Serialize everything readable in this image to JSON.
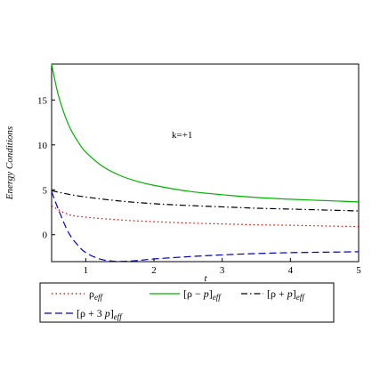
{
  "chart_data": {
    "type": "line",
    "xlabel": "t",
    "ylabel": "Energy Conditions",
    "xlim": [
      0.5,
      5
    ],
    "ylim": [
      -3,
      19
    ],
    "xticks": [
      1,
      2,
      3,
      4,
      5
    ],
    "yticks": [
      0,
      5,
      10,
      15
    ],
    "annotation": "k=+1",
    "legend_placement": "bottom",
    "series": [
      {
        "key": "rho",
        "name": "ρ_eff",
        "color": "#cc0000",
        "dash": "dotted",
        "x": [
          0.5,
          0.75,
          1,
          1.5,
          2,
          2.5,
          3,
          3.5,
          4,
          4.5,
          5
        ],
        "y": [
          3.2,
          2.25,
          1.95,
          1.65,
          1.45,
          1.3,
          1.2,
          1.1,
          1.05,
          0.97,
          0.9
        ]
      },
      {
        "key": "rho_minus_p",
        "name": "[ρ − p]_eff",
        "color": "#00b400",
        "dash": "solid",
        "x": [
          0.5,
          0.6,
          0.75,
          0.9,
          1,
          1.25,
          1.5,
          1.75,
          2,
          2.5,
          3,
          3.5,
          4,
          4.5,
          5
        ],
        "y": [
          19,
          15.5,
          12.2,
          10.2,
          9.2,
          7.6,
          6.6,
          5.95,
          5.5,
          4.85,
          4.45,
          4.15,
          3.95,
          3.8,
          3.65
        ]
      },
      {
        "key": "rho_plus_p",
        "name": "[ρ + p]_eff",
        "color": "#000000",
        "dash": "dashdot",
        "x": [
          0.5,
          0.75,
          1,
          1.5,
          2,
          2.5,
          3,
          3.5,
          4,
          4.5,
          5
        ],
        "y": [
          4.9,
          4.5,
          4.2,
          3.75,
          3.45,
          3.25,
          3.1,
          2.95,
          2.85,
          2.75,
          2.65
        ]
      },
      {
        "key": "rho_plus_3p",
        "name": "[ρ + 3 p]_eff",
        "color": "#0000cc",
        "dash": "dashed",
        "x": [
          0.5,
          0.6,
          0.75,
          0.9,
          1,
          1.2,
          1.4,
          1.6,
          1.8,
          2,
          2.5,
          3,
          3.5,
          4,
          4.5,
          5
        ],
        "y": [
          4.8,
          2.8,
          0.2,
          -1.3,
          -2.0,
          -2.7,
          -2.95,
          -2.95,
          -2.85,
          -2.7,
          -2.45,
          -2.25,
          -2.1,
          -2.0,
          -1.95,
          -1.9
        ]
      }
    ]
  },
  "legend": {
    "rho": {
      "base": "ρ",
      "sub": "eff"
    },
    "rho_minus_p": {
      "pre": "[ρ − ",
      "var": "p",
      "post": "]",
      "sub": "eff"
    },
    "rho_plus_p": {
      "pre": "[ρ + ",
      "var": "p",
      "post": "]",
      "sub": "eff"
    },
    "rho_plus_3p": {
      "pre": "[ρ + 3 ",
      "var": "p",
      "post": "]",
      "sub": "eff"
    }
  }
}
